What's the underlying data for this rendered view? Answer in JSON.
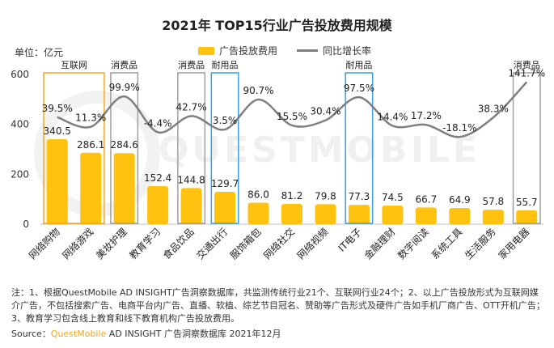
{
  "title": "2021年 TOP15行业广告投放费用规模",
  "unit": "单位：亿元",
  "legend": {
    "bar": "广告投放费用",
    "line": "同比增长率"
  },
  "watermark": "QUESTMOBILE",
  "note": "注：1、根据QuestMobile AD INSIGHT广告洞察数据库，共监测传统行业21个、互联网行业24个；2、以上广告投放形式为互联网媒介广告，不包括搜索广告、电商平台内广告、直播、软植、综艺节目冠名、赞助等广告形式及硬件广告如手机厂商广告、OTT开机广告；3、教育学习包含线上教育和线下教育机构广告投放费用。",
  "source": {
    "prefix": "Source：",
    "brand": "QuestMobile",
    "rest": " AD INSIGHT 广告洞察数据库 2021年12月"
  },
  "colors": {
    "bar": "#FFC20E",
    "line": "#7F7F7F",
    "box_orange": "#F5A623",
    "box_blue": "#3AA0E0",
    "box_gray": "#9E9E9E"
  },
  "chart_data": {
    "type": "bar",
    "title": "2021年 TOP15行业广告投放费用规模",
    "ylabel": "单位：亿元",
    "ylim": [
      0,
      600
    ],
    "yticks": [
      "0",
      "200",
      "400",
      "600"
    ],
    "categories": [
      "网络购物",
      "网络游戏",
      "美妆护理",
      "教育学习",
      "食品饮品",
      "交通出行",
      "服饰箱包",
      "网络社交",
      "网络视频",
      "IT电子",
      "金融理财",
      "数字阅读",
      "系统工具",
      "生活服务",
      "家用电器"
    ],
    "series": [
      {
        "name": "广告投放费用",
        "type": "bar",
        "values": [
          340.5,
          286.1,
          284.6,
          152.4,
          144.8,
          129.7,
          86.0,
          81.2,
          79.8,
          77.3,
          74.5,
          66.7,
          64.9,
          57.8,
          55.7
        ],
        "labels": [
          "340.5",
          "286.1",
          "284.6",
          "152.4",
          "144.8",
          "129.7",
          "86.0",
          "81.2",
          "79.8",
          "77.3",
          "74.5",
          "66.7",
          "64.9",
          "57.8",
          "55.7"
        ]
      },
      {
        "name": "同比增长率",
        "type": "line",
        "values": [
          39.5,
          11.3,
          99.9,
          -4.4,
          42.7,
          3.5,
          90.7,
          15.5,
          30.4,
          97.5,
          14.4,
          17.2,
          -18.1,
          38.3,
          141.7
        ],
        "labels": [
          "39.5%",
          "11.3%",
          "99.9%",
          "-4.4%",
          "42.7%",
          "3.5%",
          "90.7%",
          "15.5%",
          "30.4%",
          "97.5%",
          "14.4%",
          "17.2%",
          "-18.1%",
          "38.3%",
          "141.7%"
        ]
      }
    ],
    "groups": [
      {
        "label": "互联网",
        "style": "orange",
        "from": 0,
        "to": 1
      },
      {
        "label": "消费品",
        "style": "gray",
        "from": 2,
        "to": 2
      },
      {
        "label": "消费品",
        "style": "gray",
        "from": 4,
        "to": 4
      },
      {
        "label": "耐用品",
        "style": "blue",
        "from": 5,
        "to": 5
      },
      {
        "label": "耐用品",
        "style": "blue",
        "from": 9,
        "to": 9
      },
      {
        "label": "消费品",
        "style": "gray",
        "from": 14,
        "to": 14
      }
    ]
  }
}
